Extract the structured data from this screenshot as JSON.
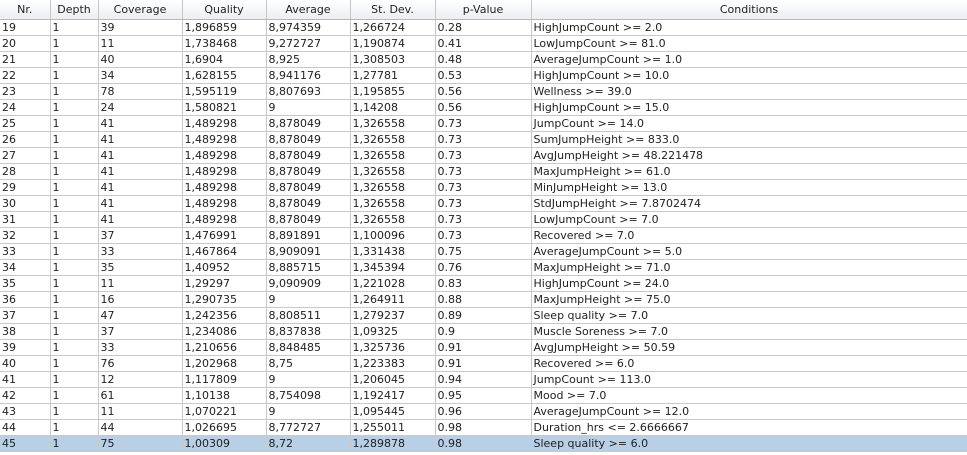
{
  "table": {
    "columns": [
      "Nr.",
      "Depth",
      "Coverage",
      "Quality",
      "Average",
      "St. Dev.",
      "p-Value",
      "Conditions"
    ],
    "selected_row": 26,
    "rows": [
      [
        "19",
        "1",
        "39",
        "1,896859",
        "8,974359",
        "1,266724",
        "0.28",
        "HighJumpCount >= 2.0"
      ],
      [
        "20",
        "1",
        "11",
        "1,738468",
        "9,272727",
        "1,190874",
        "0.41",
        "LowJumpCount >= 81.0"
      ],
      [
        "21",
        "1",
        "40",
        "1,6904",
        "8,925",
        "1,308503",
        "0.48",
        "AverageJumpCount >= 1.0"
      ],
      [
        "22",
        "1",
        "34",
        "1,628155",
        "8,941176",
        "1,27781",
        "0.53",
        "HighJumpCount >= 10.0"
      ],
      [
        "23",
        "1",
        "78",
        "1,595119",
        "8,807693",
        "1,195855",
        "0.56",
        "Wellness >= 39.0"
      ],
      [
        "24",
        "1",
        "24",
        "1,580821",
        "9",
        "1,14208",
        "0.56",
        "HighJumpCount >= 15.0"
      ],
      [
        "25",
        "1",
        "41",
        "1,489298",
        "8,878049",
        "1,326558",
        "0.73",
        "JumpCount >= 14.0"
      ],
      [
        "26",
        "1",
        "41",
        "1,489298",
        "8,878049",
        "1,326558",
        "0.73",
        "SumJumpHeight >= 833.0"
      ],
      [
        "27",
        "1",
        "41",
        "1,489298",
        "8,878049",
        "1,326558",
        "0.73",
        "AvgJumpHeight >= 48.221478"
      ],
      [
        "28",
        "1",
        "41",
        "1,489298",
        "8,878049",
        "1,326558",
        "0.73",
        "MaxJumpHeight >= 61.0"
      ],
      [
        "29",
        "1",
        "41",
        "1,489298",
        "8,878049",
        "1,326558",
        "0.73",
        "MinJumpHeight >= 13.0"
      ],
      [
        "30",
        "1",
        "41",
        "1,489298",
        "8,878049",
        "1,326558",
        "0.73",
        "StdJumpHeight >= 7.8702474"
      ],
      [
        "31",
        "1",
        "41",
        "1,489298",
        "8,878049",
        "1,326558",
        "0.73",
        "LowJumpCount >= 7.0"
      ],
      [
        "32",
        "1",
        "37",
        "1,476991",
        "8,891891",
        "1,100096",
        "0.73",
        "Recovered >= 7.0"
      ],
      [
        "33",
        "1",
        "33",
        "1,467864",
        "8,909091",
        "1,331438",
        "0.75",
        "AverageJumpCount >= 5.0"
      ],
      [
        "34",
        "1",
        "35",
        "1,40952",
        "8,885715",
        "1,345394",
        "0.76",
        "MaxJumpHeight >= 71.0"
      ],
      [
        "35",
        "1",
        "11",
        "1,29297",
        "9,090909",
        "1,221028",
        "0.83",
        "HighJumpCount >= 24.0"
      ],
      [
        "36",
        "1",
        "16",
        "1,290735",
        "9",
        "1,264911",
        "0.88",
        "MaxJumpHeight >= 75.0"
      ],
      [
        "37",
        "1",
        "47",
        "1,242356",
        "8,808511",
        "1,279237",
        "0.89",
        "Sleep quality >= 7.0"
      ],
      [
        "38",
        "1",
        "37",
        "1,234086",
        "8,837838",
        "1,09325",
        "0.9",
        "Muscle Soreness >= 7.0"
      ],
      [
        "39",
        "1",
        "33",
        "1,210656",
        "8,848485",
        "1,325736",
        "0.91",
        "AvgJumpHeight >= 50.59"
      ],
      [
        "40",
        "1",
        "76",
        "1,202968",
        "8,75",
        "1,223383",
        "0.91",
        "Recovered >= 6.0"
      ],
      [
        "41",
        "1",
        "12",
        "1,117809",
        "9",
        "1,206045",
        "0.94",
        "JumpCount >= 113.0"
      ],
      [
        "42",
        "1",
        "61",
        "1,10138",
        "8,754098",
        "1,192417",
        "0.95",
        "Mood >= 7.0"
      ],
      [
        "43",
        "1",
        "11",
        "1,070221",
        "9",
        "1,095445",
        "0.96",
        "AverageJumpCount >= 12.0"
      ],
      [
        "44",
        "1",
        "44",
        "1,026695",
        "8,772727",
        "1,255011",
        "0.98",
        "Duration_hrs <= 2.6666667"
      ],
      [
        "45",
        "1",
        "75",
        "1,00309",
        "8,72",
        "1,289878",
        "0.98",
        "Sleep quality >= 6.0"
      ]
    ]
  }
}
